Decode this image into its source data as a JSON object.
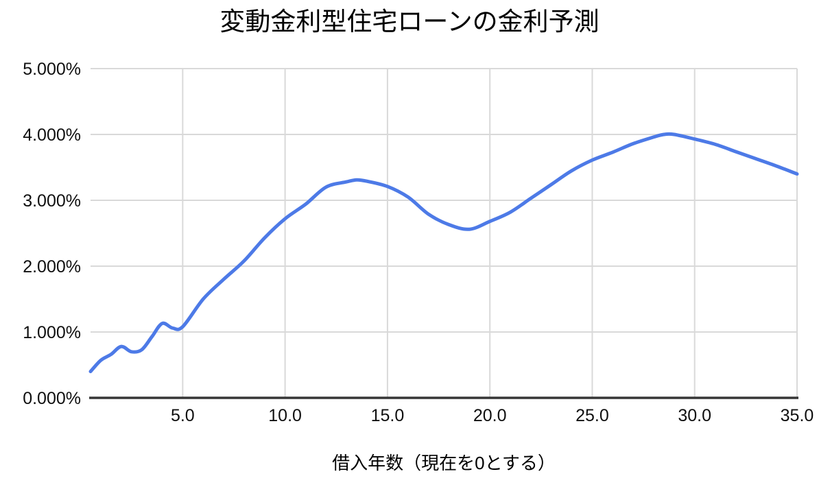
{
  "chart_data": {
    "type": "line",
    "title": "変動金利型住宅ローンの金利予測",
    "xlabel": "借入年数（現在を0とする）",
    "ylabel": "",
    "xlim": [
      0.5,
      35
    ],
    "ylim": [
      0,
      5
    ],
    "grid": true,
    "legend_position": "none",
    "y_tick_format": "percent-3-decimals",
    "x_ticks": [
      {
        "value": 5,
        "label": "5.0"
      },
      {
        "value": 10,
        "label": "10.0"
      },
      {
        "value": 15,
        "label": "15.0"
      },
      {
        "value": 20,
        "label": "20.0"
      },
      {
        "value": 25,
        "label": "25.0"
      },
      {
        "value": 30,
        "label": "30.0"
      },
      {
        "value": 35,
        "label": "35.0"
      }
    ],
    "y_ticks": [
      {
        "value": 0,
        "label": "0.000%"
      },
      {
        "value": 1,
        "label": "1.000%"
      },
      {
        "value": 2,
        "label": "2.000%"
      },
      {
        "value": 3,
        "label": "3.000%"
      },
      {
        "value": 4,
        "label": "4.000%"
      },
      {
        "value": 5,
        "label": "5.000%"
      }
    ],
    "series": [
      {
        "points": [
          [
            0.5,
            0.4
          ],
          [
            1,
            0.57
          ],
          [
            1.5,
            0.66
          ],
          [
            2,
            0.78
          ],
          [
            2.5,
            0.7
          ],
          [
            3,
            0.73
          ],
          [
            3.5,
            0.93
          ],
          [
            4,
            1.13
          ],
          [
            4.5,
            1.06
          ],
          [
            5,
            1.08
          ],
          [
            6,
            1.5
          ],
          [
            7,
            1.8
          ],
          [
            8,
            2.08
          ],
          [
            9,
            2.43
          ],
          [
            10,
            2.72
          ],
          [
            11,
            2.94
          ],
          [
            12,
            3.2
          ],
          [
            13,
            3.28
          ],
          [
            13.5,
            3.31
          ],
          [
            14,
            3.29
          ],
          [
            15,
            3.21
          ],
          [
            16,
            3.05
          ],
          [
            17,
            2.79
          ],
          [
            18,
            2.63
          ],
          [
            19,
            2.56
          ],
          [
            20,
            2.68
          ],
          [
            21,
            2.82
          ],
          [
            22,
            3.03
          ],
          [
            23,
            3.24
          ],
          [
            24,
            3.45
          ],
          [
            25,
            3.61
          ],
          [
            26,
            3.73
          ],
          [
            27,
            3.86
          ],
          [
            28,
            3.96
          ],
          [
            28.5,
            4.0
          ],
          [
            29,
            4.0
          ],
          [
            30,
            3.93
          ],
          [
            31,
            3.85
          ],
          [
            32,
            3.74
          ],
          [
            33,
            3.63
          ],
          [
            34,
            3.52
          ],
          [
            35,
            3.4
          ]
        ]
      }
    ],
    "colors": {
      "line": "#4d7ae7",
      "grid": "#d9d9d9",
      "axis": "#373737",
      "text": "#0f0f0f"
    }
  }
}
